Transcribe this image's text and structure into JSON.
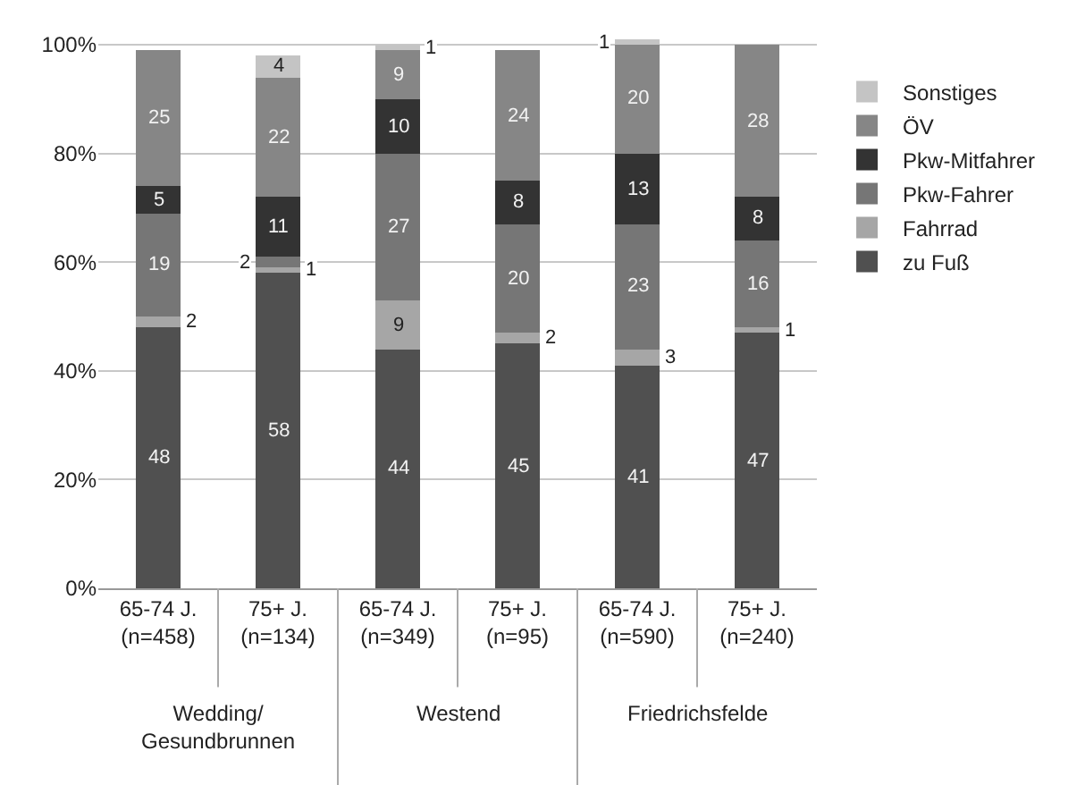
{
  "chart_data": {
    "type": "bar",
    "stacked": true,
    "categories": [
      "65-74 J.\n(n=458)",
      "75+ J.\n(n=134)",
      "65-74 J.\n(n=349)",
      "75+ J.\n(n=95)",
      "65-74 J.\n(n=590)",
      "75+ J.\n(n=240)"
    ],
    "annotations": [
      "Wedding/\nGesundbrunnen",
      "Westend",
      "Friedrichsfelde"
    ],
    "series": [
      {
        "name": "zu Fuß",
        "color": "#505050",
        "values": [
          48,
          58,
          44,
          45,
          41,
          47
        ],
        "value_labels": [
          "48",
          "58",
          "44",
          "45",
          "41",
          "47"
        ]
      },
      {
        "name": "Fahrrad",
        "color": "#a6a6a6",
        "values": [
          2,
          1,
          9,
          2,
          3,
          1
        ],
        "value_labels": [
          "2",
          "1",
          "9",
          "2",
          "3",
          "1"
        ]
      },
      {
        "name": "Pkw-Fahrer",
        "color": "#767676",
        "values": [
          19,
          2,
          27,
          20,
          23,
          16
        ],
        "value_labels": [
          "19",
          "2",
          "27",
          "20",
          "23",
          "16"
        ]
      },
      {
        "name": "Pkw-Mitfahrer",
        "color": "#333333",
        "values": [
          5,
          11,
          10,
          8,
          13,
          8
        ],
        "value_labels": [
          "5",
          "11",
          "10",
          "8",
          "13",
          "8"
        ]
      },
      {
        "name": "ÖV",
        "color": "#868686",
        "values": [
          25,
          22,
          9,
          24,
          20,
          28
        ],
        "value_labels": [
          "25",
          "22",
          "9",
          "24",
          "20",
          "28"
        ]
      },
      {
        "name": "Sonstiges",
        "color": "#c4c4c4",
        "values": [
          null,
          4,
          1,
          null,
          1,
          null
        ],
        "value_labels": [
          null,
          "4",
          "1",
          null,
          "1",
          null
        ]
      }
    ],
    "ylim": [
      0,
      101
    ],
    "yticks": [
      {
        "value": 0,
        "label": "0%"
      },
      {
        "value": 20,
        "label": "20%"
      },
      {
        "value": 40,
        "label": "40%"
      },
      {
        "value": 60,
        "label": "60%"
      },
      {
        "value": 80,
        "label": "80%"
      },
      {
        "value": 100,
        "label": "100%"
      }
    ],
    "grid": "y",
    "legend": "right"
  }
}
